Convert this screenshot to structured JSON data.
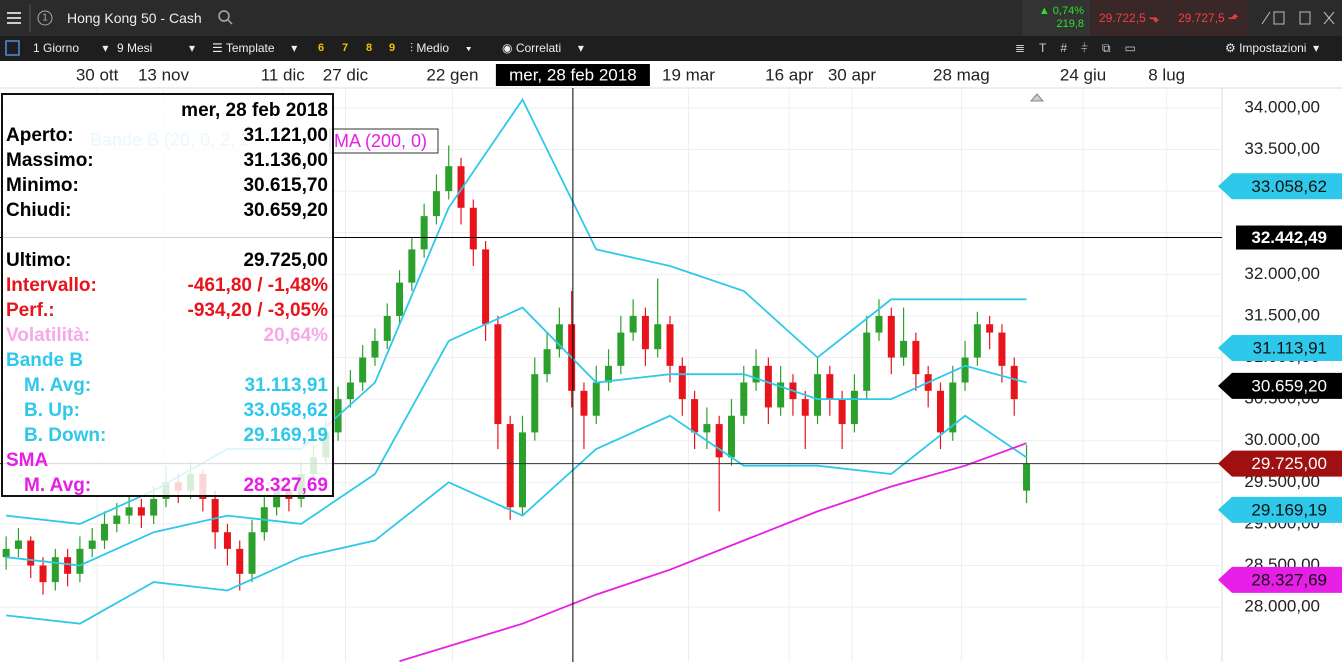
{
  "toolbar": {
    "instrument": "Hong Kong 50 - Cash",
    "change_pct": "0,74%",
    "change_pts": "219,8",
    "sell": "29.722,5",
    "buy": "29.727,5",
    "interval": "1 Giorno",
    "range": "9 Mesi",
    "template": "Template",
    "presets": [
      "6",
      "7",
      "8",
      "9"
    ],
    "style": "Medio",
    "related": "Correlati",
    "settings": "Impostazioni"
  },
  "info": {
    "date": "mer, 28 feb 2018",
    "rows": [
      {
        "label": "Aperto:",
        "value": "31.121,00",
        "color": "#000"
      },
      {
        "label": "Massimo:",
        "value": "31.136,00",
        "color": "#000"
      },
      {
        "label": "Minimo:",
        "value": "30.615,70",
        "color": "#000"
      },
      {
        "label": "Chiudi:",
        "value": "30.659,20",
        "color": "#000"
      },
      {
        "label": "Ultimo:",
        "value": "29.725,00",
        "color": "#000"
      },
      {
        "label": "Intervallo:",
        "value": "-461,80 / -1,48%",
        "color": "#e8141c"
      },
      {
        "label": "Perf.:",
        "value": "-934,20 / -3,05%",
        "color": "#e8141c"
      },
      {
        "label": "Volatilità:",
        "value": "20,64%",
        "color": "#f7a8e8"
      },
      {
        "label": "Bande B",
        "value": null,
        "color": "#2ec9ea"
      },
      {
        "label": "M. Avg:",
        "value": "31.113,91",
        "color": "#2ec9ea"
      },
      {
        "label": "B. Up:",
        "value": "33.058,62",
        "color": "#2ec9ea"
      },
      {
        "label": "B. Down:",
        "value": "29.169,19",
        "color": "#2ec9ea"
      },
      {
        "label": "SMA",
        "value": null,
        "color": "#e61ee6"
      },
      {
        "label": "M. Avg:",
        "value": "28.327,69",
        "color": "#e61ee6"
      }
    ]
  },
  "chart_data": {
    "type": "candlestick",
    "legend": [
      "Bande B (20, 0, 2, 2",
      "MA (200, 0)"
    ],
    "candles": [
      [
        28600,
        28850,
        28450,
        28700
      ],
      [
        28700,
        28950,
        28600,
        28800
      ],
      [
        28800,
        28850,
        28350,
        28500
      ],
      [
        28500,
        28600,
        28150,
        28300
      ],
      [
        28300,
        28700,
        28200,
        28600
      ],
      [
        28600,
        28700,
        28250,
        28400
      ],
      [
        28400,
        28850,
        28300,
        28700
      ],
      [
        28700,
        28950,
        28600,
        28800
      ],
      [
        28800,
        29150,
        28700,
        29000
      ],
      [
        29000,
        29250,
        28900,
        29100
      ],
      [
        29100,
        29350,
        29000,
        29200
      ],
      [
        29200,
        29300,
        28950,
        29100
      ],
      [
        29100,
        29450,
        29000,
        29300
      ],
      [
        29300,
        29700,
        29200,
        29500
      ],
      [
        29500,
        29600,
        29250,
        29400
      ],
      [
        29400,
        29750,
        29300,
        29600
      ],
      [
        29600,
        29650,
        29150,
        29300
      ],
      [
        29300,
        29400,
        28700,
        28900
      ],
      [
        28900,
        29000,
        28500,
        28700
      ],
      [
        28700,
        28800,
        28200,
        28400
      ],
      [
        28400,
        29050,
        28300,
        28900
      ],
      [
        28900,
        29350,
        28800,
        29200
      ],
      [
        29200,
        29550,
        29100,
        29400
      ],
      [
        29400,
        29500,
        29150,
        29300
      ],
      [
        29300,
        29750,
        29200,
        29600
      ],
      [
        29600,
        29950,
        29500,
        29800
      ],
      [
        29800,
        30250,
        29700,
        30100
      ],
      [
        30100,
        30650,
        30000,
        30500
      ],
      [
        30500,
        30850,
        30400,
        30700
      ],
      [
        30700,
        31150,
        30600,
        31000
      ],
      [
        31000,
        31350,
        30900,
        31200
      ],
      [
        31200,
        31650,
        31100,
        31500
      ],
      [
        31500,
        32050,
        31400,
        31900
      ],
      [
        31900,
        32450,
        31800,
        32300
      ],
      [
        32300,
        32850,
        32200,
        32700
      ],
      [
        32700,
        33200,
        32600,
        33000
      ],
      [
        33000,
        33550,
        32900,
        33300
      ],
      [
        33300,
        33400,
        32600,
        32800
      ],
      [
        32800,
        32900,
        32100,
        32300
      ],
      [
        32300,
        32400,
        31200,
        31400
      ],
      [
        31400,
        31500,
        29900,
        30200
      ],
      [
        30200,
        30300,
        29050,
        29200
      ],
      [
        29200,
        30300,
        29100,
        30100
      ],
      [
        30100,
        31000,
        30000,
        30800
      ],
      [
        30800,
        31300,
        30700,
        31100
      ],
      [
        31100,
        31600,
        31000,
        31400
      ],
      [
        31400,
        31800,
        30400,
        30600
      ],
      [
        30600,
        30700,
        29900,
        30300
      ],
      [
        30300,
        30900,
        30200,
        30700
      ],
      [
        30700,
        31100,
        30600,
        30900
      ],
      [
        30900,
        31500,
        30800,
        31300
      ],
      [
        31300,
        31700,
        31200,
        31500
      ],
      [
        31500,
        31600,
        30900,
        31100
      ],
      [
        31100,
        31950,
        31000,
        31400
      ],
      [
        31400,
        31500,
        30700,
        30900
      ],
      [
        30900,
        31000,
        30300,
        30500
      ],
      [
        30500,
        30600,
        29900,
        30100
      ],
      [
        30100,
        30400,
        29900,
        30200
      ],
      [
        30200,
        30300,
        29150,
        29800
      ],
      [
        29800,
        30500,
        29700,
        30300
      ],
      [
        30300,
        30900,
        30200,
        30700
      ],
      [
        30700,
        31100,
        30600,
        30900
      ],
      [
        30900,
        31000,
        30200,
        30400
      ],
      [
        30400,
        30900,
        30300,
        30700
      ],
      [
        30700,
        30800,
        30300,
        30500
      ],
      [
        30500,
        30600,
        29900,
        30300
      ],
      [
        30300,
        31000,
        30200,
        30800
      ],
      [
        30800,
        30900,
        30300,
        30500
      ],
      [
        30500,
        30600,
        29900,
        30200
      ],
      [
        30200,
        30800,
        30100,
        30600
      ],
      [
        30600,
        31500,
        30500,
        31300
      ],
      [
        31300,
        31700,
        31200,
        31500
      ],
      [
        31500,
        31600,
        30800,
        31000
      ],
      [
        31000,
        31600,
        30900,
        31200
      ],
      [
        31200,
        31300,
        30600,
        30800
      ],
      [
        30800,
        30900,
        30400,
        30600
      ],
      [
        30600,
        30700,
        29900,
        30100
      ],
      [
        30100,
        30900,
        30000,
        30700
      ],
      [
        30700,
        31200,
        30600,
        31000
      ],
      [
        31000,
        31550,
        30900,
        31400
      ],
      [
        31400,
        31500,
        31100,
        31300
      ],
      [
        31300,
        31400,
        30700,
        30900
      ],
      [
        30900,
        31000,
        30300,
        30500
      ],
      [
        29400,
        29950,
        29250,
        29725
      ]
    ],
    "up_color": "#2ca02c",
    "down_color": "#e8141c",
    "series": [
      {
        "name": "B. Up",
        "color": "#2ec9ea",
        "x": [
          0,
          6,
          12,
          18,
          24,
          30,
          36,
          42,
          48,
          54,
          60,
          66,
          72,
          78,
          83
        ],
        "values": [
          29100,
          29000,
          29400,
          29900,
          29900,
          30700,
          32800,
          34100,
          32300,
          32100,
          31800,
          31000,
          31700,
          31700,
          31700
        ]
      },
      {
        "name": "M. Avg",
        "color": "#2ec9ea",
        "x": [
          0,
          6,
          12,
          18,
          24,
          30,
          36,
          42,
          48,
          54,
          60,
          66,
          72,
          78,
          83
        ],
        "values": [
          28600,
          28500,
          28900,
          29100,
          29000,
          29600,
          31200,
          31600,
          30700,
          30800,
          30800,
          30500,
          30500,
          30900,
          30700
        ]
      },
      {
        "name": "B. Down",
        "color": "#2ec9ea",
        "x": [
          0,
          6,
          12,
          18,
          24,
          30,
          36,
          42,
          48,
          54,
          60,
          66,
          72,
          78,
          83
        ],
        "values": [
          27900,
          27800,
          28300,
          28200,
          28600,
          28800,
          29500,
          29100,
          29900,
          30300,
          29700,
          29700,
          29600,
          30300,
          29800
        ]
      },
      {
        "name": "SMA",
        "color": "#e61ee6",
        "x": [
          32,
          42,
          48,
          54,
          60,
          66,
          72,
          78,
          83
        ],
        "values": [
          27350,
          27800,
          28150,
          28450,
          28800,
          29150,
          29450,
          29700,
          29970
        ]
      }
    ],
    "xticks": [
      {
        "value": 7.4,
        "label": "30 ott"
      },
      {
        "value": 12.8,
        "label": "13 nov"
      },
      {
        "value": 22.5,
        "label": "11 dic"
      },
      {
        "value": 27.6,
        "label": "27 dic"
      },
      {
        "value": 36.3,
        "label": "22 gen"
      },
      {
        "value": 55.5,
        "label": "19 mar"
      },
      {
        "value": 63.7,
        "label": "16 apr"
      },
      {
        "value": 68.8,
        "label": "30 apr"
      },
      {
        "value": 77.7,
        "label": "28 mag"
      },
      {
        "value": 87.6,
        "label": "24 giu"
      },
      {
        "value": 94.4,
        "label": "8 lug"
      }
    ],
    "xlim": [
      -0.5,
      98.9
    ],
    "ylim": [
      27340,
      34240
    ],
    "yticks": [
      {
        "value": 28000,
        "label": "28.000,00"
      },
      {
        "value": 28500,
        "label": "28.500,00"
      },
      {
        "value": 29000,
        "label": "29.000,00"
      },
      {
        "value": 29500,
        "label": "29.500,00"
      },
      {
        "value": 30000,
        "label": "30.000,00"
      },
      {
        "value": 30500,
        "label": "30.500,00"
      },
      {
        "value": 31000,
        "label": "31.000,00"
      },
      {
        "value": 31500,
        "label": "31.500,00"
      },
      {
        "value": 32000,
        "label": "32.000,00"
      },
      {
        "value": 32500,
        "label": "32.500,00"
      },
      {
        "value": 33000,
        "label": "33.000,00"
      },
      {
        "value": 33500,
        "label": "33.500,00"
      },
      {
        "value": 34000,
        "label": "34.000,00"
      }
    ],
    "crosshair": {
      "x": 46.1,
      "label": "mer, 28 feb 2018",
      "y": {
        "value": 32442.49,
        "label": "32.442,49"
      }
    },
    "last_price": {
      "value": 29725,
      "label": "29.725,00",
      "color": "#a01010"
    },
    "price_tags": [
      {
        "value": 33058.62,
        "label": "33.058,62",
        "color": "#2ec9ea"
      },
      {
        "value": 31113.91,
        "label": "31.113,91",
        "color": "#2ec9ea"
      },
      {
        "value": 30659.2,
        "label": "30.659,20",
        "color": "#000"
      },
      {
        "value": 29169.19,
        "label": "29.169,19",
        "color": "#2ec9ea"
      },
      {
        "value": 28327.69,
        "label": "28.327,69",
        "color": "#e61ee6"
      }
    ],
    "grid": true
  }
}
